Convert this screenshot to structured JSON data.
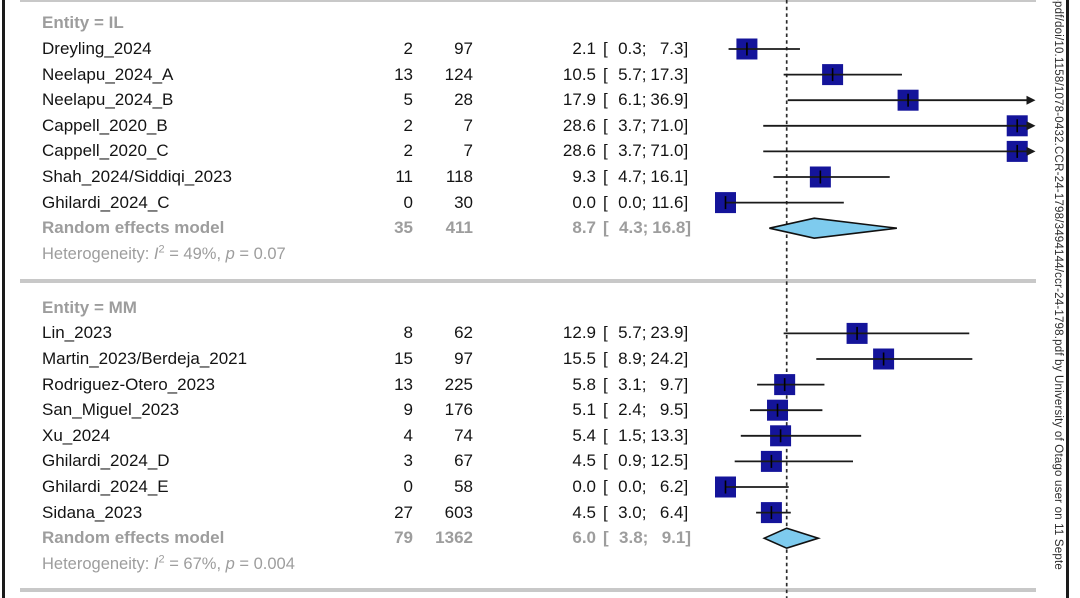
{
  "watermark": "-pdf/doi/10.1158/1078-0432.CCR-24-1798/3494144/ccr-24-1798.pdf by University of Otago user on 11 Septe",
  "labels": {
    "heterogeneity": "Heterogeneity:",
    "i_symbol": "I",
    "i_exponent": "2",
    "equals": "=",
    "comma": ",",
    "p_symbol": "p"
  },
  "colors": {
    "square": "#14149a",
    "line": "#1a1a1a",
    "tick": "#000000",
    "diamond_fill": "#7ecbee",
    "diamond_stroke": "#111111",
    "reference_line": "#2b2b2b",
    "gray_text": "#9d9d9d",
    "study_text": "#141414",
    "rule": "#c8c8c8"
  },
  "chart_data": {
    "type": "forest",
    "effect_unit": "percent",
    "xlim": [
      0,
      30
    ],
    "reference_line": 6.0,
    "grid": false,
    "groups": [
      {
        "header": "Entity = IL",
        "studies": [
          {
            "study": "Dreyling_2024",
            "events": "2",
            "total": "97",
            "pct": "2.1",
            "ci_low": "0.3",
            "ci_high": "7.3"
          },
          {
            "study": "Neelapu_2024_A",
            "events": "13",
            "total": "124",
            "pct": "10.5",
            "ci_low": "5.7",
            "ci_high": "17.3"
          },
          {
            "study": "Neelapu_2024_B",
            "events": "5",
            "total": "28",
            "pct": "17.9",
            "ci_low": "6.1",
            "ci_high": "36.9"
          },
          {
            "study": "Cappell_2020_B",
            "events": "2",
            "total": "7",
            "pct": "28.6",
            "ci_low": "3.7",
            "ci_high": "71.0"
          },
          {
            "study": "Cappell_2020_C",
            "events": "2",
            "total": "7",
            "pct": "28.6",
            "ci_low": "3.7",
            "ci_high": "71.0"
          },
          {
            "study": "Shah_2024/Siddiqi_2023",
            "events": "11",
            "total": "118",
            "pct": "9.3",
            "ci_low": "4.7",
            "ci_high": "16.1"
          },
          {
            "study": "Ghilardi_2024_C",
            "events": "0",
            "total": "30",
            "pct": "0.0",
            "ci_low": "0.0",
            "ci_high": "11.6"
          }
        ],
        "summary": {
          "label": "Random effects model",
          "events": "35",
          "total": "411",
          "pct": "8.7",
          "ci_low": "4.3",
          "ci_high": "16.8"
        },
        "heterogeneity": {
          "i2": "49%",
          "p": "0.07"
        }
      },
      {
        "header": "Entity = MM",
        "studies": [
          {
            "study": "Lin_2023",
            "events": "8",
            "total": "62",
            "pct": "12.9",
            "ci_low": "5.7",
            "ci_high": "23.9"
          },
          {
            "study": "Martin_2023/Berdeja_2021",
            "events": "15",
            "total": "97",
            "pct": "15.5",
            "ci_low": "8.9",
            "ci_high": "24.2"
          },
          {
            "study": "Rodriguez-Otero_2023",
            "events": "13",
            "total": "225",
            "pct": "5.8",
            "ci_low": "3.1",
            "ci_high": "9.7"
          },
          {
            "study": "San_Miguel_2023",
            "events": "9",
            "total": "176",
            "pct": "5.1",
            "ci_low": "2.4",
            "ci_high": "9.5"
          },
          {
            "study": "Xu_2024",
            "events": "4",
            "total": "74",
            "pct": "5.4",
            "ci_low": "1.5",
            "ci_high": "13.3"
          },
          {
            "study": "Ghilardi_2024_D",
            "events": "3",
            "total": "67",
            "pct": "4.5",
            "ci_low": "0.9",
            "ci_high": "12.5"
          },
          {
            "study": "Ghilardi_2024_E",
            "events": "0",
            "total": "58",
            "pct": "0.0",
            "ci_low": "0.0",
            "ci_high": "6.2"
          },
          {
            "study": "Sidana_2023",
            "events": "27",
            "total": "603",
            "pct": "4.5",
            "ci_low": "3.0",
            "ci_high": "6.4"
          }
        ],
        "summary": {
          "label": "Random effects model",
          "events": "79",
          "total": "1362",
          "pct": "6.0",
          "ci_low": "3.8",
          "ci_high": "9.1"
        },
        "heterogeneity": {
          "i2": "67%",
          "p": "0.004"
        }
      }
    ]
  }
}
